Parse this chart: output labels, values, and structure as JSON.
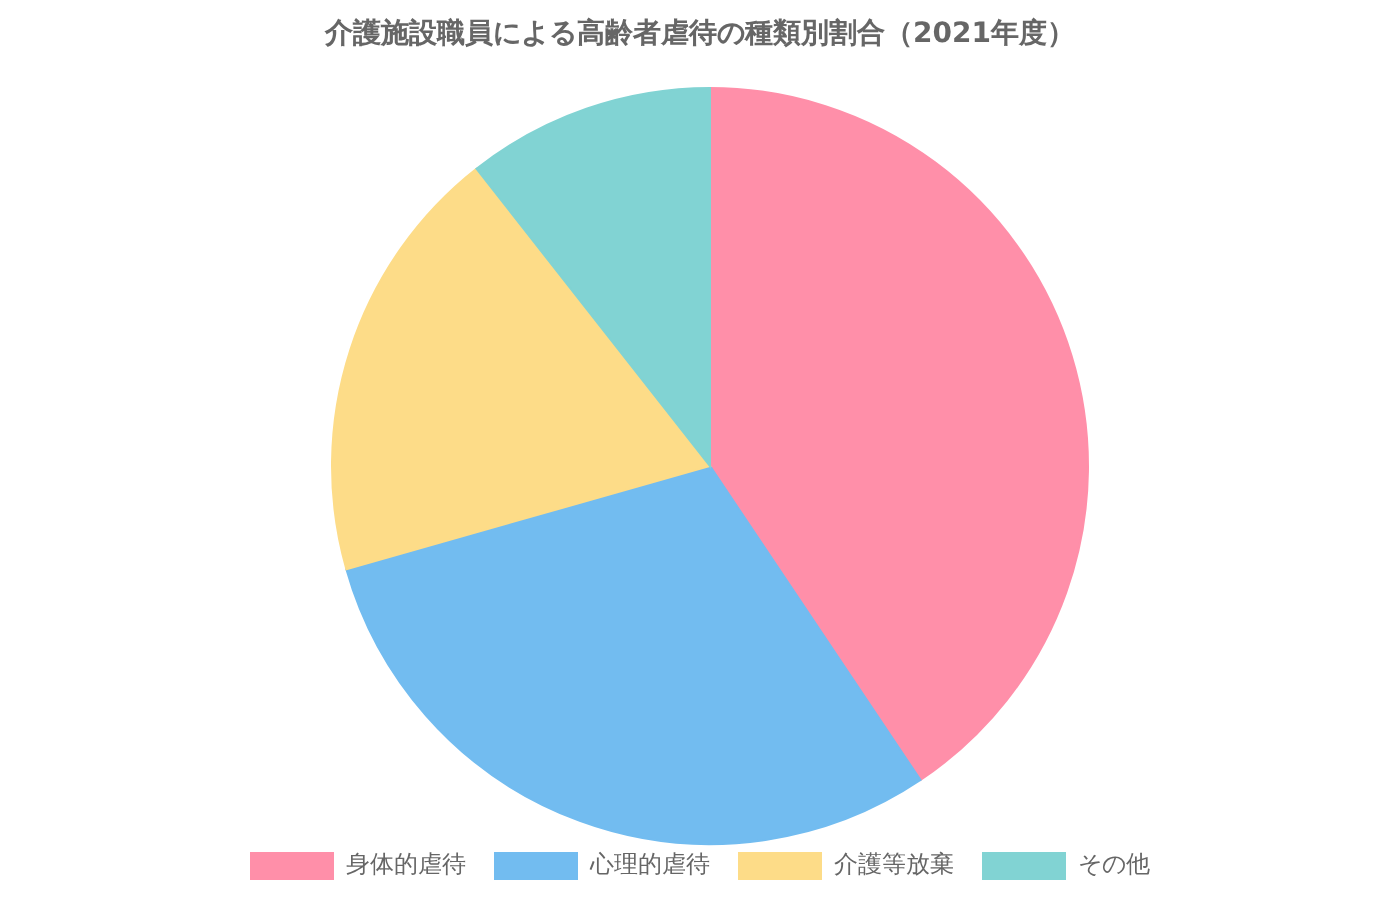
{
  "chart_data": {
    "type": "pie",
    "title": "介護施設職員による高齢者虐待の種類別割合（2021年度）",
    "categories": [
      "身体的虐待",
      "心理的虐待",
      "介護等放棄",
      "その他"
    ],
    "values": [
      40.6,
      30.0,
      18.8,
      10.6
    ],
    "colors": [
      "#ff8fa9",
      "#72bcf0",
      "#fddc88",
      "#81d3d3"
    ],
    "legend": "bottom"
  }
}
